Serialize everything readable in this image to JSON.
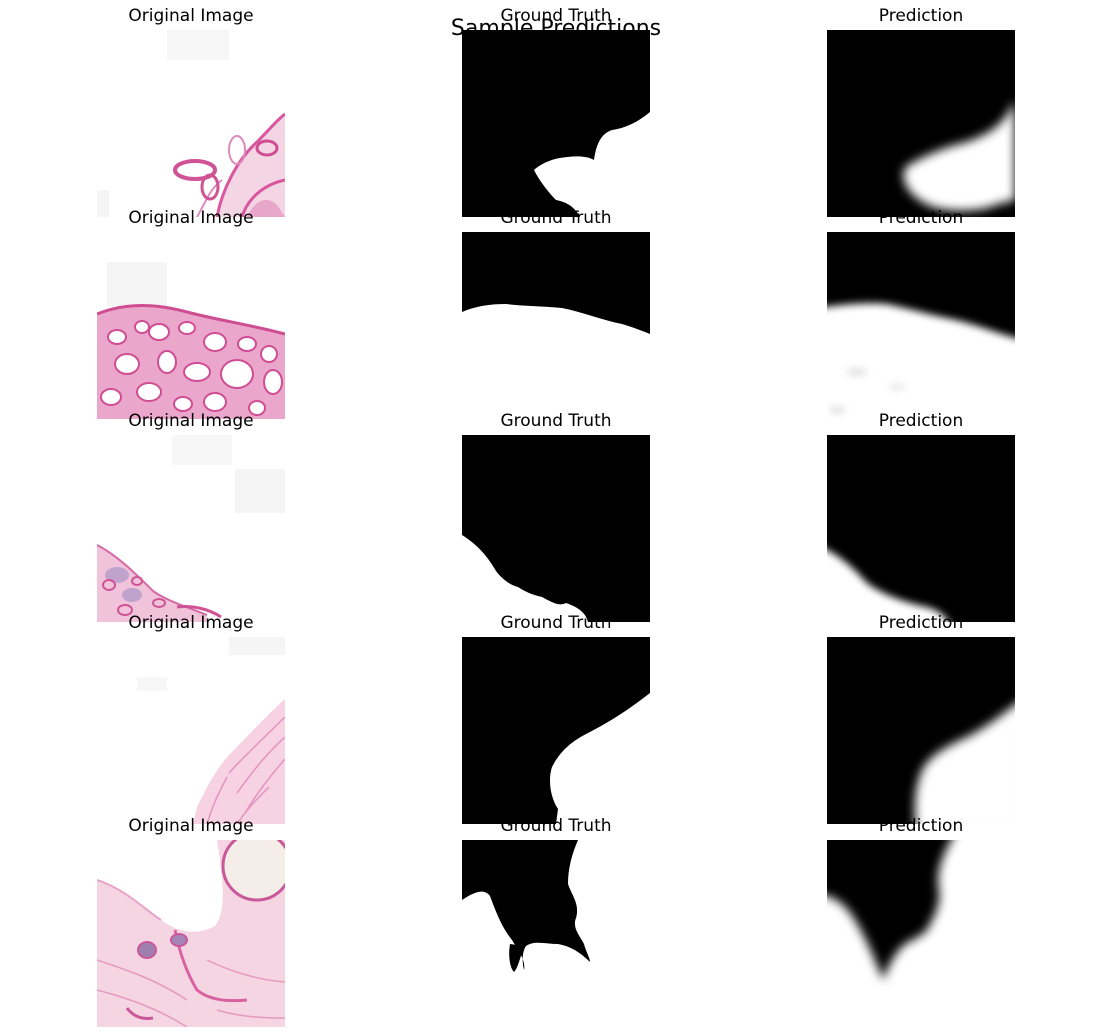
{
  "figure": {
    "suptitle": "Sample Predictions",
    "column_titles": [
      "Original Image",
      "Ground Truth",
      "Prediction"
    ],
    "rows": [
      {
        "original_title": "Original Image",
        "truth_title": "Ground Truth",
        "prediction_title": "Prediction"
      },
      {
        "original_title": "Original Image",
        "truth_title": "Ground Truth",
        "prediction_title": "Prediction"
      },
      {
        "original_title": "Original Image",
        "truth_title": "Ground Truth",
        "prediction_title": "Prediction"
      },
      {
        "original_title": "Original Image",
        "truth_title": "Ground Truth",
        "prediction_title": "Prediction"
      },
      {
        "original_title": "Original Image",
        "truth_title": "Ground Truth",
        "prediction_title": "Prediction"
      }
    ]
  },
  "colors": {
    "background": "#ffffff",
    "mask_foreground": "#000000",
    "mask_background": "#ffffff",
    "tissue_pink": "#e58ac0",
    "tissue_magenta": "#d2559c",
    "tissue_light": "#f3c9dc"
  }
}
